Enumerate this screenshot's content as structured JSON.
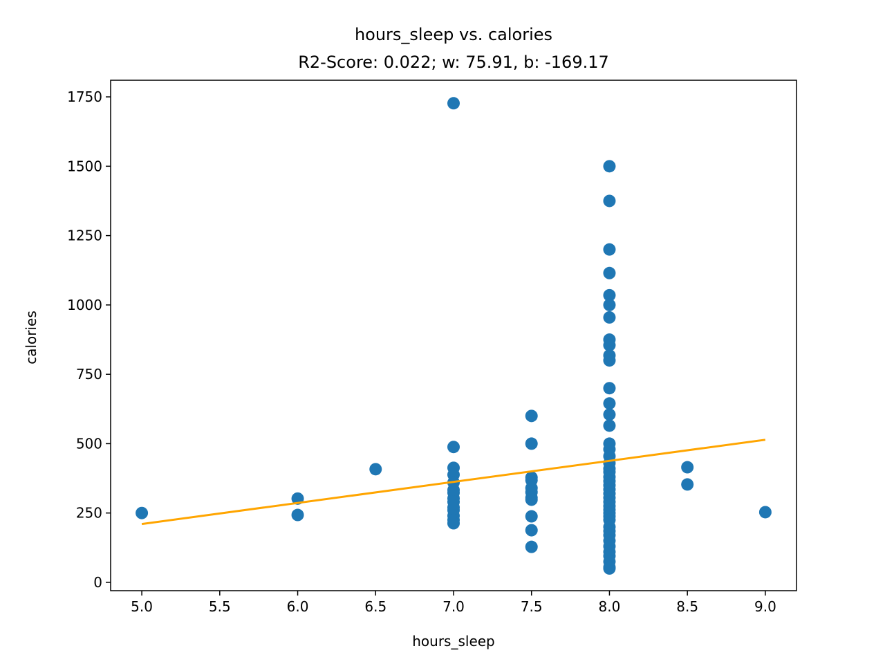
{
  "chart_data": {
    "type": "scatter",
    "title": "hours_sleep vs. calories",
    "subtitle": "R2-Score: 0.022; w: 75.91, b: -169.17",
    "xlabel": "hours_sleep",
    "ylabel": "calories",
    "xlim": [
      4.8,
      9.2
    ],
    "ylim": [
      -30,
      1810
    ],
    "xticks": [
      "5.0",
      "5.5",
      "6.0",
      "6.5",
      "7.0",
      "7.5",
      "8.0",
      "8.5",
      "9.0"
    ],
    "yticks": [
      "0",
      "250",
      "500",
      "750",
      "1000",
      "1250",
      "1500",
      "1750"
    ],
    "grid": false,
    "point_color": "#1f77b4",
    "line_color": "#ffa500",
    "points": [
      [
        5.0,
        250
      ],
      [
        6.0,
        302
      ],
      [
        6.0,
        243
      ],
      [
        6.5,
        408
      ],
      [
        7.0,
        1727
      ],
      [
        7.0,
        488
      ],
      [
        7.0,
        413
      ],
      [
        7.0,
        388
      ],
      [
        7.0,
        360
      ],
      [
        7.0,
        333
      ],
      [
        7.0,
        323
      ],
      [
        7.0,
        303
      ],
      [
        7.0,
        290
      ],
      [
        7.0,
        270
      ],
      [
        7.0,
        260
      ],
      [
        7.0,
        240
      ],
      [
        7.0,
        225
      ],
      [
        7.0,
        213
      ],
      [
        7.5,
        600
      ],
      [
        7.5,
        500
      ],
      [
        7.5,
        378
      ],
      [
        7.5,
        368
      ],
      [
        7.5,
        340
      ],
      [
        7.5,
        325
      ],
      [
        7.5,
        305
      ],
      [
        7.5,
        298
      ],
      [
        7.5,
        238
      ],
      [
        7.5,
        188
      ],
      [
        7.5,
        128
      ],
      [
        8.0,
        1500
      ],
      [
        8.0,
        1375
      ],
      [
        8.0,
        1200
      ],
      [
        8.0,
        1115
      ],
      [
        8.0,
        1035
      ],
      [
        8.0,
        1000
      ],
      [
        8.0,
        955
      ],
      [
        8.0,
        875
      ],
      [
        8.0,
        855
      ],
      [
        8.0,
        818
      ],
      [
        8.0,
        800
      ],
      [
        8.0,
        700
      ],
      [
        8.0,
        645
      ],
      [
        8.0,
        605
      ],
      [
        8.0,
        565
      ],
      [
        8.0,
        500
      ],
      [
        8.0,
        480
      ],
      [
        8.0,
        455
      ],
      [
        8.0,
        430
      ],
      [
        8.0,
        410
      ],
      [
        8.0,
        398
      ],
      [
        8.0,
        380
      ],
      [
        8.0,
        365
      ],
      [
        8.0,
        350
      ],
      [
        8.0,
        335
      ],
      [
        8.0,
        320
      ],
      [
        8.0,
        305
      ],
      [
        8.0,
        290
      ],
      [
        8.0,
        275
      ],
      [
        8.0,
        262
      ],
      [
        8.0,
        250
      ],
      [
        8.0,
        238
      ],
      [
        8.0,
        225
      ],
      [
        8.0,
        200
      ],
      [
        8.0,
        185
      ],
      [
        8.0,
        170
      ],
      [
        8.0,
        150
      ],
      [
        8.0,
        130
      ],
      [
        8.0,
        110
      ],
      [
        8.0,
        95
      ],
      [
        8.0,
        75
      ],
      [
        8.0,
        55
      ],
      [
        8.0,
        50
      ],
      [
        8.5,
        415
      ],
      [
        8.5,
        353
      ],
      [
        9.0,
        253
      ]
    ],
    "fit_line": {
      "w": 75.91,
      "b": -169.17,
      "x_range": [
        5.0,
        9.0
      ]
    }
  }
}
